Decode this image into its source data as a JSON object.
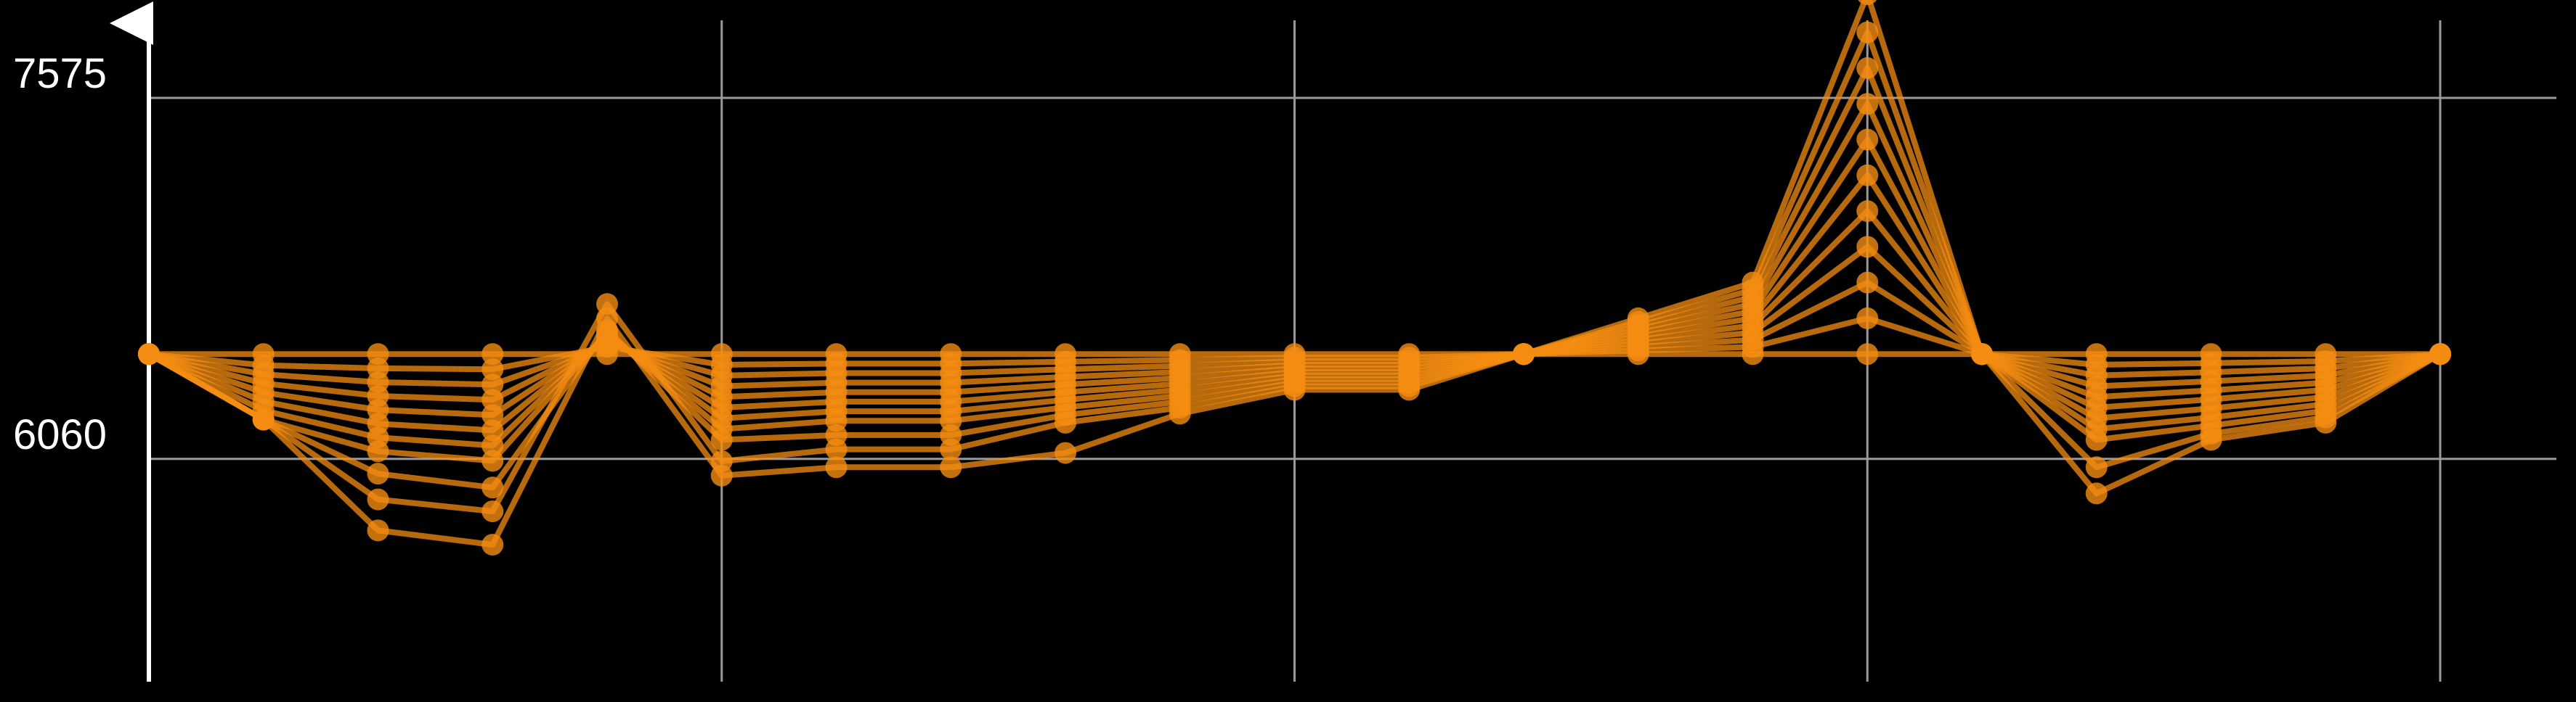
{
  "chart_data": {
    "type": "line",
    "title": "",
    "xlabel": "",
    "ylabel": "",
    "y_ticks": [
      {
        "value": 6060,
        "label": "6060"
      },
      {
        "value": 7575,
        "label": "7575"
      }
    ],
    "ylim": [
      5125,
      7925
    ],
    "x": [
      0,
      1,
      2,
      3,
      4,
      5,
      6,
      7,
      8,
      9,
      10,
      11,
      12,
      13,
      14,
      15,
      16,
      17,
      18,
      19,
      20
    ],
    "x_grid_every": 5,
    "grid": true,
    "legend": "none",
    "colors": {
      "background": "#000000",
      "grid": "#9a9a9a",
      "axis": "#ffffff",
      "series": "#f48c12"
    },
    "series": [
      {
        "values": [
          6500,
          6500,
          6500,
          6500,
          6500,
          6500,
          6500,
          6500,
          6500,
          6500,
          6500,
          6500,
          6500,
          6500,
          6500,
          6500,
          6500,
          6500,
          6500,
          6500,
          6500
        ]
      },
      {
        "values": [
          6500,
          6453,
          6440,
          6436,
          6530,
          6455,
          6460,
          6460,
          6468,
          6475,
          6485,
          6485,
          6500,
          6515,
          6530,
          6650,
          6500,
          6455,
          6462,
          6470,
          6500
        ]
      },
      {
        "values": [
          6500,
          6415,
          6382,
          6372,
          6540,
          6410,
          6420,
          6420,
          6436,
          6450,
          6470,
          6470,
          6500,
          6530,
          6560,
          6800,
          6500,
          6410,
          6424,
          6440,
          6500
        ]
      },
      {
        "values": [
          6500,
          6377,
          6324,
          6308,
          6550,
          6365,
          6380,
          6380,
          6404,
          6425,
          6455,
          6455,
          6500,
          6545,
          6590,
          6950,
          6500,
          6365,
          6386,
          6410,
          6500
        ]
      },
      {
        "values": [
          6500,
          6339,
          6266,
          6244,
          6560,
          6320,
          6340,
          6340,
          6372,
          6400,
          6440,
          6440,
          6500,
          6560,
          6620,
          7100,
          6500,
          6320,
          6348,
          6380,
          6500
        ]
      },
      {
        "values": [
          6500,
          6301,
          6208,
          6180,
          6570,
          6275,
          6300,
          6300,
          6340,
          6375,
          6425,
          6425,
          6500,
          6575,
          6650,
          7250,
          6500,
          6275,
          6310,
          6350,
          6500
        ]
      },
      {
        "values": [
          6500,
          6263,
          6150,
          6116,
          6580,
          6230,
          6260,
          6260,
          6308,
          6350,
          6410,
          6410,
          6500,
          6590,
          6680,
          7400,
          6500,
          6230,
          6272,
          6320,
          6500
        ]
      },
      {
        "values": [
          6500,
          6225,
          6092,
          6052,
          6590,
          6185,
          6220,
          6220,
          6276,
          6325,
          6395,
          6395,
          6500,
          6605,
          6710,
          7550,
          6500,
          6185,
          6234,
          6290,
          6500
        ]
      },
      {
        "values": [
          6500,
          6225,
          5998,
          5940,
          6600,
          6140,
          6160,
          6160,
          6244,
          6300,
          6380,
          6380,
          6500,
          6620,
          6740,
          7700,
          6500,
          6140,
          6200,
          6262,
          6500
        ]
      },
      {
        "values": [
          6500,
          6225,
          5890,
          5840,
          6710,
          6050,
          6100,
          6100,
          6212,
          6275,
          6365,
          6365,
          6500,
          6635,
          6770,
          7850,
          6500,
          6025,
          6166,
          6234,
          6500
        ]
      },
      {
        "values": [
          6500,
          6225,
          5760,
          5700,
          6650,
          5990,
          6025,
          6025,
          6085,
          6250,
          6350,
          6350,
          6500,
          6650,
          6800,
          8010,
          6500,
          5915,
          6140,
          6212,
          6500
        ]
      }
    ]
  }
}
